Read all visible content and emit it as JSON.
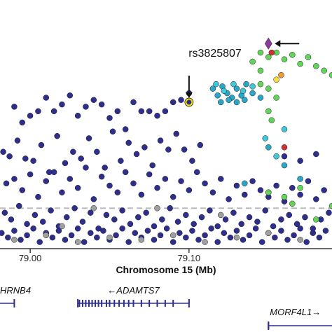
{
  "chart_data": {
    "type": "scatter",
    "xlabel": "Chromosome 15 (Mb)",
    "x_ticks": [
      79.0,
      79.1
    ],
    "x_tick_labels": [
      "79.00",
      "79.10"
    ],
    "xlim": [
      78.981,
      79.19
    ],
    "ylim": [
      0,
      100
    ],
    "significance_line_y": 17,
    "annotation": {
      "label": "rs3825807",
      "x": 79.1,
      "y": 64
    },
    "lead_snp": {
      "x": 79.15,
      "y": 90
    },
    "colors": {
      "navy": "#2e2e8f",
      "grey": "#a0a0a0",
      "teal": "#2aa6c8",
      "cyan": "#3fc8d8",
      "green": "#63d45a",
      "yellow": "#f4e03c",
      "orange": "#f09a30",
      "red": "#d03030",
      "purple": "#8b3a9e",
      "highlight": "#f2e300",
      "gene": "#2e2e8f"
    },
    "series": [
      {
        "color": "navy",
        "points": [
          [
            78.99,
            62
          ],
          [
            78.995,
            55
          ],
          [
            79.0,
            58
          ],
          [
            79.005,
            60
          ],
          [
            79.01,
            66
          ],
          [
            79.015,
            60
          ],
          [
            79.02,
            63
          ],
          [
            79.025,
            67
          ],
          [
            79.03,
            58
          ],
          [
            79.035,
            62
          ],
          [
            79.04,
            65
          ],
          [
            79.045,
            63
          ],
          [
            79.05,
            57
          ],
          [
            79.055,
            60
          ],
          [
            79.06,
            52
          ],
          [
            79.065,
            64
          ],
          [
            79.07,
            60
          ],
          [
            79.075,
            60
          ],
          [
            79.08,
            58
          ],
          [
            79.085,
            60
          ],
          [
            79.09,
            64
          ],
          [
            79.095,
            65
          ],
          [
            79.1,
            68
          ],
          [
            78.983,
            42
          ],
          [
            78.987,
            40
          ],
          [
            78.992,
            47
          ],
          [
            78.997,
            39
          ],
          [
            79.002,
            38
          ],
          [
            79.007,
            45
          ],
          [
            79.012,
            33
          ],
          [
            79.017,
            49
          ],
          [
            79.022,
            37
          ],
          [
            79.027,
            42
          ],
          [
            79.032,
            39
          ],
          [
            79.037,
            48
          ],
          [
            79.042,
            42
          ],
          [
            79.047,
            35
          ],
          [
            79.052,
            51
          ],
          [
            79.057,
            38
          ],
          [
            79.062,
            46
          ],
          [
            79.067,
            41
          ],
          [
            79.072,
            44
          ],
          [
            79.077,
            36
          ],
          [
            79.082,
            47
          ],
          [
            79.087,
            43
          ],
          [
            79.092,
            50
          ],
          [
            79.097,
            43
          ],
          [
            79.102,
            38
          ],
          [
            79.107,
            45
          ],
          [
            78.985,
            28
          ],
          [
            78.99,
            30
          ],
          [
            78.995,
            25
          ],
          [
            79.0,
            32
          ],
          [
            79.005,
            22
          ],
          [
            79.01,
            29
          ],
          [
            79.015,
            33
          ],
          [
            79.02,
            24
          ],
          [
            79.025,
            30
          ],
          [
            79.03,
            26
          ],
          [
            79.035,
            35
          ],
          [
            79.04,
            21
          ],
          [
            79.045,
            31
          ],
          [
            79.05,
            27
          ],
          [
            79.055,
            24
          ],
          [
            79.06,
            33
          ],
          [
            79.065,
            28
          ],
          [
            79.07,
            23
          ],
          [
            79.075,
            32
          ],
          [
            79.08,
            26
          ],
          [
            79.085,
            30
          ],
          [
            79.09,
            22
          ],
          [
            79.095,
            29
          ],
          [
            79.1,
            25
          ],
          [
            79.105,
            33
          ],
          [
            79.11,
            28
          ],
          [
            79.115,
            24
          ],
          [
            79.12,
            30
          ],
          [
            79.125,
            21
          ],
          [
            79.13,
            27
          ],
          [
            79.135,
            23
          ],
          [
            79.14,
            29
          ],
          [
            79.145,
            25
          ],
          [
            79.15,
            22
          ],
          [
            79.155,
            27
          ],
          [
            79.16,
            20
          ],
          [
            79.165,
            26
          ],
          [
            79.17,
            23
          ],
          [
            79.175,
            29
          ],
          [
            79.18,
            21
          ],
          [
            79.185,
            25
          ],
          [
            78.984,
            15
          ],
          [
            78.988,
            12
          ],
          [
            78.993,
            18
          ],
          [
            78.998,
            10
          ],
          [
            79.003,
            14
          ],
          [
            79.008,
            11
          ],
          [
            79.013,
            16
          ],
          [
            79.018,
            9
          ],
          [
            79.023,
            13
          ],
          [
            79.028,
            17
          ],
          [
            79.033,
            11
          ],
          [
            79.038,
            15
          ],
          [
            79.043,
            8
          ],
          [
            79.048,
            14
          ],
          [
            79.053,
            12
          ],
          [
            79.058,
            16
          ],
          [
            79.063,
            10
          ],
          [
            79.068,
            13
          ],
          [
            79.073,
            15
          ],
          [
            79.078,
            9
          ],
          [
            79.083,
            12
          ],
          [
            79.088,
            17
          ],
          [
            79.093,
            11
          ],
          [
            79.098,
            14
          ],
          [
            79.103,
            10
          ],
          [
            79.108,
            13
          ],
          [
            79.113,
            16
          ],
          [
            79.118,
            9
          ],
          [
            79.123,
            12
          ],
          [
            79.128,
            15
          ],
          [
            79.133,
            10
          ],
          [
            79.138,
            13
          ],
          [
            79.143,
            11
          ],
          [
            79.148,
            16
          ],
          [
            79.153,
            9
          ],
          [
            79.158,
            12
          ],
          [
            79.163,
            14
          ],
          [
            79.168,
            10
          ],
          [
            79.173,
            13
          ],
          [
            79.178,
            8
          ],
          [
            79.183,
            12
          ],
          [
            79.188,
            15
          ],
          [
            78.982,
            6
          ],
          [
            78.986,
            4
          ],
          [
            78.99,
            7
          ],
          [
            78.994,
            3
          ],
          [
            78.998,
            5
          ],
          [
            79.002,
            8
          ],
          [
            79.006,
            2
          ],
          [
            79.01,
            6
          ],
          [
            79.014,
            4
          ],
          [
            79.018,
            7
          ],
          [
            79.022,
            3
          ],
          [
            79.026,
            5
          ],
          [
            79.03,
            8
          ],
          [
            79.034,
            2
          ],
          [
            79.038,
            6
          ],
          [
            79.042,
            4
          ],
          [
            79.046,
            7
          ],
          [
            79.05,
            3
          ],
          [
            79.054,
            5
          ],
          [
            79.058,
            8
          ],
          [
            79.062,
            2
          ],
          [
            79.066,
            6
          ],
          [
            79.07,
            4
          ],
          [
            79.074,
            7
          ],
          [
            79.078,
            3
          ],
          [
            79.082,
            5
          ],
          [
            79.086,
            8
          ],
          [
            79.09,
            2
          ],
          [
            79.094,
            6
          ],
          [
            79.098,
            4
          ],
          [
            79.102,
            7
          ],
          [
            79.106,
            3
          ],
          [
            79.11,
            5
          ],
          [
            79.114,
            8
          ],
          [
            79.118,
            2
          ],
          [
            79.122,
            6
          ],
          [
            79.126,
            4
          ],
          [
            79.13,
            7
          ],
          [
            79.134,
            3
          ],
          [
            79.138,
            5
          ],
          [
            79.142,
            8
          ],
          [
            79.146,
            2
          ],
          [
            79.15,
            6
          ],
          [
            79.154,
            4
          ],
          [
            79.158,
            7
          ],
          [
            79.162,
            3
          ],
          [
            79.166,
            5
          ],
          [
            79.17,
            8
          ],
          [
            79.174,
            2
          ],
          [
            79.178,
            6
          ],
          [
            79.182,
            4
          ],
          [
            79.186,
            7
          ],
          [
            79.16,
            40
          ],
          [
            79.17,
            38
          ],
          [
            79.18,
            41
          ]
        ]
      },
      {
        "color": "grey",
        "points": [
          [
            78.99,
            3
          ],
          [
            79.01,
            5
          ],
          [
            79.03,
            2
          ],
          [
            79.05,
            4
          ],
          [
            79.07,
            3
          ],
          [
            79.09,
            5
          ],
          [
            79.11,
            2
          ],
          [
            79.13,
            4
          ],
          [
            79.04,
            17
          ],
          [
            79.02,
            9
          ],
          [
            79.08,
            17
          ],
          [
            79.12,
            14
          ],
          [
            79.15,
            6
          ],
          [
            79.17,
            3
          ]
        ]
      },
      {
        "color": "teal",
        "points": [
          [
            79.115,
            70
          ],
          [
            79.118,
            67
          ],
          [
            79.121,
            71
          ],
          [
            79.124,
            68
          ],
          [
            79.127,
            66
          ],
          [
            79.13,
            70
          ],
          [
            79.133,
            67
          ],
          [
            79.136,
            72
          ],
          [
            79.12,
            64
          ],
          [
            79.125,
            65
          ],
          [
            79.13,
            64
          ],
          [
            79.135,
            65
          ],
          [
            79.14,
            68
          ],
          [
            79.145,
            66
          ],
          [
            79.15,
            44
          ],
          [
            79.16,
            36
          ],
          [
            79.135,
            28
          ],
          [
            79.15,
            24
          ],
          [
            79.17,
            30
          ]
        ]
      },
      {
        "color": "cyan",
        "points": [
          [
            79.117,
            72
          ],
          [
            79.122,
            69
          ],
          [
            79.128,
            72
          ],
          [
            79.134,
            69
          ],
          [
            79.14,
            71
          ],
          [
            79.16,
            52
          ],
          [
            79.148,
            48
          ],
          [
            79.155,
            40
          ]
        ]
      },
      {
        "color": "green",
        "points": [
          [
            79.14,
            82
          ],
          [
            79.145,
            86
          ],
          [
            79.15,
            84
          ],
          [
            79.155,
            86
          ],
          [
            79.16,
            83
          ],
          [
            79.165,
            85
          ],
          [
            79.17,
            81
          ],
          [
            79.175,
            84
          ],
          [
            79.18,
            80
          ],
          [
            79.185,
            78
          ],
          [
            79.19,
            76
          ],
          [
            79.145,
            72
          ],
          [
            79.15,
            70
          ],
          [
            79.155,
            66
          ],
          [
            79.15,
            60
          ],
          [
            79.152,
            56
          ],
          [
            79.145,
            78
          ],
          [
            79.16,
            22
          ],
          [
            79.165,
            19
          ],
          [
            79.15,
            24
          ],
          [
            79.17,
            26
          ],
          [
            79.18,
            12
          ],
          [
            79.19,
            18
          ]
        ]
      },
      {
        "color": "yellow",
        "points": [
          [
            79.155,
            74
          ]
        ]
      },
      {
        "color": "orange",
        "points": [
          [
            79.158,
            76
          ]
        ]
      },
      {
        "color": "red",
        "points": [
          [
            79.152,
            86
          ],
          [
            79.16,
            44
          ]
        ]
      },
      {
        "color": "purple",
        "points": [
          [
            79.15,
            90
          ]
        ]
      }
    ],
    "genes": [
      {
        "label": "HRNB4",
        "arrow": "",
        "row": 1,
        "start": 78.95,
        "end": 78.99,
        "exons": []
      },
      {
        "label": "ADAMTS7",
        "arrow": "←",
        "row": 1,
        "start": 79.03,
        "end": 79.1,
        "exons": [
          79.031,
          79.033,
          79.035,
          79.037,
          79.039,
          79.041,
          79.043,
          79.045,
          79.048,
          79.05,
          79.053,
          79.056,
          79.059,
          79.062,
          79.065,
          79.07,
          79.075,
          79.08,
          79.085,
          79.09
        ]
      },
      {
        "label": "MORF4L1",
        "arrow": "→",
        "row": 2,
        "start": 79.15,
        "end": 79.25,
        "exons": [
          79.15
        ]
      }
    ]
  }
}
